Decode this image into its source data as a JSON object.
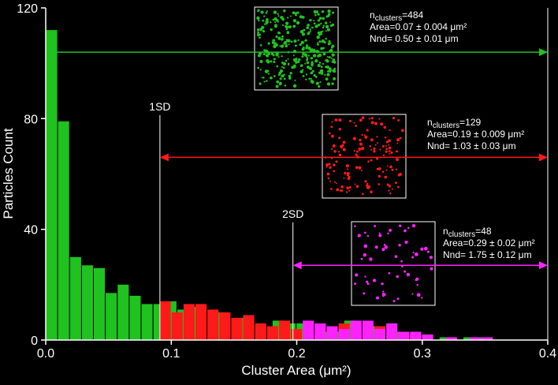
{
  "chart_data": {
    "type": "bar",
    "title": "",
    "xlabel": "Cluster Area (μm²)",
    "ylabel": "Particles Count",
    "xlim": [
      0.0,
      0.4
    ],
    "ylim": [
      0,
      120
    ],
    "x_ticks": [
      "0.0",
      "0.1",
      "0.2",
      "0.3",
      "0.4"
    ],
    "y_ticks": [
      "0",
      "40",
      "80",
      "120"
    ],
    "grid": false,
    "bin_width": 0.0095,
    "series": [
      {
        "color": "#1fc21f",
        "bars": [
          {
            "x": 0.0,
            "y": 112
          },
          {
            "x": 0.0095,
            "y": 79
          },
          {
            "x": 0.019,
            "y": 30
          },
          {
            "x": 0.0285,
            "y": 27
          },
          {
            "x": 0.038,
            "y": 26
          },
          {
            "x": 0.0475,
            "y": 17
          },
          {
            "x": 0.057,
            "y": 20
          },
          {
            "x": 0.0665,
            "y": 16
          },
          {
            "x": 0.076,
            "y": 13
          },
          {
            "x": 0.0855,
            "y": 13
          },
          {
            "x": 0.095,
            "y": 14
          },
          {
            "x": 0.1045,
            "y": 11
          },
          {
            "x": 0.114,
            "y": 12
          },
          {
            "x": 0.133,
            "y": 10
          },
          {
            "x": 0.152,
            "y": 8
          },
          {
            "x": 0.1805,
            "y": 7
          },
          {
            "x": 0.19,
            "y": 6
          },
          {
            "x": 0.1995,
            "y": 6
          },
          {
            "x": 0.2185,
            "y": 3
          },
          {
            "x": 0.228,
            "y": 3
          },
          {
            "x": 0.2375,
            "y": 7
          },
          {
            "x": 0.2565,
            "y": 5
          },
          {
            "x": 0.2755,
            "y": 3
          },
          {
            "x": 0.3135,
            "y": 1
          },
          {
            "x": 0.3325,
            "y": 1
          },
          {
            "x": 0.342,
            "y": 1
          }
        ]
      },
      {
        "color": "#ff1a1a",
        "bars": [
          {
            "x": 0.0905,
            "y": 14
          },
          {
            "x": 0.1,
            "y": 10
          },
          {
            "x": 0.1095,
            "y": 13
          },
          {
            "x": 0.119,
            "y": 13
          },
          {
            "x": 0.1285,
            "y": 11
          },
          {
            "x": 0.138,
            "y": 10
          },
          {
            "x": 0.1475,
            "y": 8
          },
          {
            "x": 0.157,
            "y": 9
          },
          {
            "x": 0.1665,
            "y": 6
          },
          {
            "x": 0.176,
            "y": 5
          },
          {
            "x": 0.1855,
            "y": 7
          },
          {
            "x": 0.195,
            "y": 4
          },
          {
            "x": 0.2045,
            "y": 4
          },
          {
            "x": 0.214,
            "y": 2
          },
          {
            "x": 0.2235,
            "y": 3
          },
          {
            "x": 0.233,
            "y": 6
          },
          {
            "x": 0.2425,
            "y": 6
          },
          {
            "x": 0.252,
            "y": 3
          },
          {
            "x": 0.2615,
            "y": 5
          },
          {
            "x": 0.271,
            "y": 3
          },
          {
            "x": 0.2805,
            "y": 2
          },
          {
            "x": 0.29,
            "y": 2
          },
          {
            "x": 0.3185,
            "y": 1
          },
          {
            "x": 0.3375,
            "y": 1
          }
        ]
      },
      {
        "color": "#ff22ff",
        "bars": [
          {
            "x": 0.2045,
            "y": 7
          },
          {
            "x": 0.214,
            "y": 6
          },
          {
            "x": 0.2235,
            "y": 5
          },
          {
            "x": 0.233,
            "y": 4
          },
          {
            "x": 0.2425,
            "y": 7
          },
          {
            "x": 0.252,
            "y": 7
          },
          {
            "x": 0.2615,
            "y": 4
          },
          {
            "x": 0.271,
            "y": 6
          },
          {
            "x": 0.2805,
            "y": 3
          },
          {
            "x": 0.29,
            "y": 3
          },
          {
            "x": 0.2995,
            "y": 2
          },
          {
            "x": 0.3185,
            "y": 1
          },
          {
            "x": 0.3375,
            "y": 1
          },
          {
            "x": 0.347,
            "y": 1
          }
        ]
      }
    ],
    "reference_lines": [
      {
        "label": "1SD",
        "x": 0.091
      },
      {
        "label": "2SD",
        "x": 0.197
      }
    ],
    "ranges": [
      {
        "color": "#1fc21f",
        "from": 0.002,
        "to": 0.4,
        "y": 104
      },
      {
        "color": "#ff1a1a",
        "from": 0.091,
        "to": 0.4,
        "y": 66
      },
      {
        "color": "#ff22ff",
        "from": 0.197,
        "to": 0.4,
        "y": 27
      }
    ],
    "annotations": [
      {
        "n": "n",
        "n_sub": "clusters",
        "n_value": "=484",
        "area": "Area=0.07 ± 0.004 μm²",
        "nnd": "Nnd= 0.50 ± 0.01 μm",
        "color": "#1fc21f"
      },
      {
        "n": "n",
        "n_sub": "clusters",
        "n_value": "=129",
        "area": "Area=0.19 ± 0.009 μm²",
        "nnd": "Nnd= 1.03 ± 0.03 μm",
        "color": "#ff1a1a"
      },
      {
        "n": "n",
        "n_sub": "clusters",
        "n_value": "=48",
        "area": "Area=0.29 ± 0.02 μm²",
        "nnd": "Nnd= 1.75 ± 0.12 μm",
        "color": "#ff22ff"
      }
    ]
  }
}
